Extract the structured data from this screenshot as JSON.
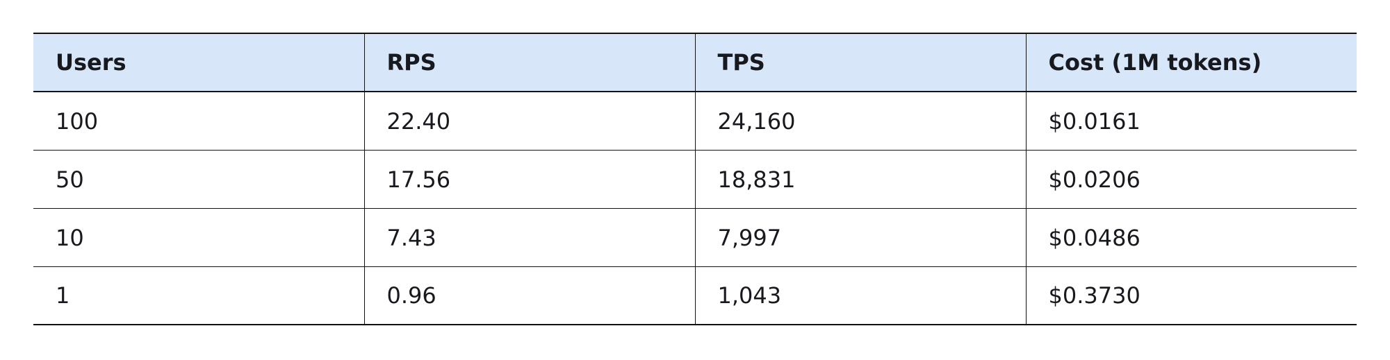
{
  "colors": {
    "page_bg": "#ffffff",
    "header_bg": "#d8e6fa",
    "border": "#111111",
    "text": "#17191e"
  },
  "table": {
    "columns": [
      {
        "id": "users",
        "label": "Users"
      },
      {
        "id": "rps",
        "label": "RPS"
      },
      {
        "id": "tps",
        "label": "TPS"
      },
      {
        "id": "cost",
        "label": "Cost (1M tokens)"
      }
    ],
    "rows": [
      [
        "100",
        "22.40",
        "24,160",
        "$0.0161"
      ],
      [
        "50",
        "17.56",
        "18,831",
        "$0.0206"
      ],
      [
        "10",
        "7.43",
        "7,997",
        "$0.0486"
      ],
      [
        "1",
        "0.96",
        "1,043",
        "$0.3730"
      ]
    ]
  },
  "chart_data": {
    "type": "table",
    "columns": [
      "Users",
      "RPS",
      "TPS",
      "Cost (1M tokens)"
    ],
    "rows": [
      [
        "100",
        "22.40",
        "24,160",
        "$0.0161"
      ],
      [
        "50",
        "17.56",
        "18,831",
        "$0.0206"
      ],
      [
        "10",
        "7.43",
        "7,997",
        "$0.0486"
      ],
      [
        "1",
        "0.96",
        "1,043",
        "$0.3730"
      ]
    ]
  }
}
